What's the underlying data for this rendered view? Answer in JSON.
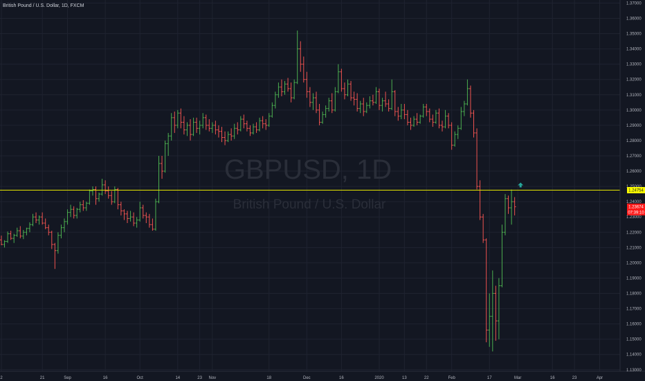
{
  "header": {
    "symbol_title": "British Pound / U.S. Dollar, 1D, FXCM"
  },
  "watermark": {
    "ticker": "GBPUSD, 1D",
    "description": "British Pound / U.S. Dollar"
  },
  "colors": {
    "background": "#131722",
    "grid": "#1f2330",
    "up": "#4caf50",
    "down": "#ef5350",
    "level_line": "#e6e600",
    "level_tag_bg": "#ffff00",
    "price_tag_bg": "#ff1a1a",
    "marker": "#26a69a"
  },
  "icons": {
    "level_marker": "up-arrow-marker-icon"
  },
  "labels": {
    "level_price": "1.24754",
    "last_price": "1.23674",
    "countdown": "07:39:10"
  },
  "chart_data": {
    "type": "ohlc",
    "title": "British Pound / U.S. Dollar, 1D, FXCM",
    "xlabel": "",
    "ylabel": "",
    "ylim": [
      1.129,
      1.372
    ],
    "y_ticks": [
      "1.37000",
      "1.36000",
      "1.35000",
      "1.34000",
      "1.33000",
      "1.32000",
      "1.31000",
      "1.30000",
      "1.29000",
      "1.28000",
      "1.27000",
      "1.26000",
      "1.25000",
      "1.24000",
      "1.23000",
      "1.22000",
      "1.21000",
      "1.20000",
      "1.19000",
      "1.18000",
      "1.17000",
      "1.16000",
      "1.15000",
      "1.14000",
      "1.13000"
    ],
    "x_ticks": [
      {
        "label": "2",
        "bar": 0
      },
      {
        "label": "21",
        "bar": 13
      },
      {
        "label": "Sep",
        "bar": 21
      },
      {
        "label": "16",
        "bar": 33
      },
      {
        "label": "Oct",
        "bar": 44
      },
      {
        "label": "14",
        "bar": 56
      },
      {
        "label": "23",
        "bar": 63
      },
      {
        "label": "Nov",
        "bar": 67
      },
      {
        "label": "18",
        "bar": 85
      },
      {
        "label": "Dec",
        "bar": 97
      },
      {
        "label": "16",
        "bar": 108
      },
      {
        "label": "2020",
        "bar": 120
      },
      {
        "label": "13",
        "bar": 128
      },
      {
        "label": "22",
        "bar": 135
      },
      {
        "label": "Feb",
        "bar": 143
      },
      {
        "label": "17",
        "bar": 155
      },
      {
        "label": "Mar",
        "bar": 164
      },
      {
        "label": "16",
        "bar": 175
      },
      {
        "label": "23",
        "bar": 182
      },
      {
        "label": "Apr",
        "bar": 190
      }
    ],
    "grid": true,
    "horizontal_line": 1.24754,
    "last_price": 1.23674,
    "ohlc": [
      [
        1.215,
        1.2178,
        1.2115,
        1.212
      ],
      [
        1.212,
        1.2148,
        1.21,
        1.214
      ],
      [
        1.214,
        1.2205,
        1.213,
        1.219
      ],
      [
        1.219,
        1.221,
        1.215,
        1.216
      ],
      [
        1.216,
        1.219,
        1.213,
        1.218
      ],
      [
        1.218,
        1.223,
        1.217,
        1.221
      ],
      [
        1.221,
        1.224,
        1.216,
        1.2175
      ],
      [
        1.2175,
        1.2215,
        1.2155,
        1.22
      ],
      [
        1.22,
        1.223,
        1.218,
        1.2225
      ],
      [
        1.2225,
        1.2265,
        1.22,
        1.225
      ],
      [
        1.225,
        1.232,
        1.224,
        1.23
      ],
      [
        1.23,
        1.233,
        1.226,
        1.228
      ],
      [
        1.228,
        1.231,
        1.225,
        1.23
      ],
      [
        1.23,
        1.233,
        1.225,
        1.226
      ],
      [
        1.226,
        1.229,
        1.222,
        1.223
      ],
      [
        1.223,
        1.225,
        1.218,
        1.22
      ],
      [
        1.22,
        1.221,
        1.209,
        1.212
      ],
      [
        1.212,
        1.213,
        1.196,
        1.208
      ],
      [
        1.208,
        1.22,
        1.206,
        1.218
      ],
      [
        1.218,
        1.225,
        1.216,
        1.223
      ],
      [
        1.223,
        1.229,
        1.22,
        1.227
      ],
      [
        1.227,
        1.235,
        1.225,
        1.233
      ],
      [
        1.233,
        1.238,
        1.23,
        1.235
      ],
      [
        1.235,
        1.237,
        1.229,
        1.231
      ],
      [
        1.231,
        1.236,
        1.229,
        1.235
      ],
      [
        1.235,
        1.24,
        1.233,
        1.238
      ],
      [
        1.238,
        1.241,
        1.234,
        1.236
      ],
      [
        1.236,
        1.24,
        1.234,
        1.239
      ],
      [
        1.239,
        1.248,
        1.238,
        1.247
      ],
      [
        1.247,
        1.25,
        1.244,
        1.248
      ],
      [
        1.248,
        1.25,
        1.238,
        1.242
      ],
      [
        1.242,
        1.246,
        1.24,
        1.245
      ],
      [
        1.245,
        1.255,
        1.244,
        1.251
      ],
      [
        1.251,
        1.254,
        1.245,
        1.247
      ],
      [
        1.247,
        1.25,
        1.242,
        1.244
      ],
      [
        1.244,
        1.247,
        1.238,
        1.24
      ],
      [
        1.24,
        1.25,
        1.239,
        1.248
      ],
      [
        1.248,
        1.249,
        1.235,
        1.238
      ],
      [
        1.238,
        1.24,
        1.231,
        1.234
      ],
      [
        1.234,
        1.235,
        1.228,
        1.232
      ],
      [
        1.232,
        1.234,
        1.226,
        1.229
      ],
      [
        1.229,
        1.234,
        1.227,
        1.23
      ],
      [
        1.23,
        1.233,
        1.224,
        1.226
      ],
      [
        1.226,
        1.23,
        1.223,
        1.228
      ],
      [
        1.228,
        1.24,
        1.227,
        1.236
      ],
      [
        1.236,
        1.238,
        1.229,
        1.231
      ],
      [
        1.231,
        1.233,
        1.226,
        1.23
      ],
      [
        1.23,
        1.232,
        1.223,
        1.225
      ],
      [
        1.225,
        1.229,
        1.221,
        1.222
      ],
      [
        1.222,
        1.242,
        1.221,
        1.24
      ],
      [
        1.24,
        1.27,
        1.239,
        1.265
      ],
      [
        1.265,
        1.27,
        1.255,
        1.26
      ],
      [
        1.26,
        1.28,
        1.259,
        1.278
      ],
      [
        1.278,
        1.285,
        1.27,
        1.283
      ],
      [
        1.283,
        1.298,
        1.28,
        1.295
      ],
      [
        1.295,
        1.299,
        1.285,
        1.29
      ],
      [
        1.29,
        1.3,
        1.288,
        1.298
      ],
      [
        1.298,
        1.301,
        1.288,
        1.292
      ],
      [
        1.292,
        1.296,
        1.284,
        1.287
      ],
      [
        1.287,
        1.292,
        1.283,
        1.29
      ],
      [
        1.29,
        1.294,
        1.28,
        1.284
      ],
      [
        1.284,
        1.295,
        1.283,
        1.292
      ],
      [
        1.292,
        1.295,
        1.285,
        1.288
      ],
      [
        1.288,
        1.293,
        1.284,
        1.29
      ],
      [
        1.29,
        1.298,
        1.288,
        1.295
      ],
      [
        1.295,
        1.297,
        1.287,
        1.29
      ],
      [
        1.29,
        1.294,
        1.286,
        1.288
      ],
      [
        1.288,
        1.292,
        1.285,
        1.29
      ],
      [
        1.29,
        1.293,
        1.284,
        1.287
      ],
      [
        1.287,
        1.29,
        1.282,
        1.286
      ],
      [
        1.286,
        1.289,
        1.279,
        1.282
      ],
      [
        1.282,
        1.286,
        1.277,
        1.28
      ],
      [
        1.28,
        1.286,
        1.279,
        1.284
      ],
      [
        1.284,
        1.288,
        1.28,
        1.283
      ],
      [
        1.283,
        1.291,
        1.281,
        1.288
      ],
      [
        1.288,
        1.292,
        1.284,
        1.287
      ],
      [
        1.287,
        1.296,
        1.286,
        1.294
      ],
      [
        1.294,
        1.297,
        1.288,
        1.291
      ],
      [
        1.291,
        1.293,
        1.286,
        1.288
      ],
      [
        1.288,
        1.29,
        1.283,
        1.285
      ],
      [
        1.285,
        1.291,
        1.284,
        1.289
      ],
      [
        1.289,
        1.292,
        1.285,
        1.287
      ],
      [
        1.287,
        1.295,
        1.286,
        1.293
      ],
      [
        1.293,
        1.296,
        1.288,
        1.291
      ],
      [
        1.291,
        1.294,
        1.287,
        1.29
      ],
      [
        1.29,
        1.298,
        1.289,
        1.296
      ],
      [
        1.296,
        1.305,
        1.295,
        1.303
      ],
      [
        1.303,
        1.312,
        1.301,
        1.31
      ],
      [
        1.31,
        1.318,
        1.308,
        1.315
      ],
      [
        1.315,
        1.32,
        1.309,
        1.312
      ],
      [
        1.312,
        1.319,
        1.31,
        1.317
      ],
      [
        1.317,
        1.321,
        1.312,
        1.314
      ],
      [
        1.314,
        1.318,
        1.305,
        1.308
      ],
      [
        1.308,
        1.32,
        1.307,
        1.318
      ],
      [
        1.318,
        1.352,
        1.317,
        1.34
      ],
      [
        1.34,
        1.345,
        1.325,
        1.33
      ],
      [
        1.33,
        1.335,
        1.318,
        1.32
      ],
      [
        1.32,
        1.325,
        1.308,
        1.312
      ],
      [
        1.312,
        1.315,
        1.302,
        1.305
      ],
      [
        1.305,
        1.311,
        1.3,
        1.308
      ],
      [
        1.308,
        1.312,
        1.298,
        1.3
      ],
      [
        1.3,
        1.304,
        1.29,
        1.292
      ],
      [
        1.292,
        1.299,
        1.291,
        1.297
      ],
      [
        1.297,
        1.303,
        1.295,
        1.301
      ],
      [
        1.301,
        1.308,
        1.299,
        1.306
      ],
      [
        1.306,
        1.311,
        1.298,
        1.3
      ],
      [
        1.3,
        1.315,
        1.299,
        1.312
      ],
      [
        1.312,
        1.33,
        1.311,
        1.325
      ],
      [
        1.325,
        1.327,
        1.312,
        1.314
      ],
      [
        1.314,
        1.318,
        1.307,
        1.31
      ],
      [
        1.31,
        1.32,
        1.309,
        1.317
      ],
      [
        1.317,
        1.319,
        1.306,
        1.308
      ],
      [
        1.308,
        1.312,
        1.303,
        1.307
      ],
      [
        1.307,
        1.311,
        1.299,
        1.301
      ],
      [
        1.301,
        1.306,
        1.298,
        1.304
      ],
      [
        1.304,
        1.308,
        1.296,
        1.299
      ],
      [
        1.299,
        1.305,
        1.298,
        1.303
      ],
      [
        1.303,
        1.309,
        1.301,
        1.306
      ],
      [
        1.306,
        1.31,
        1.303,
        1.305
      ],
      [
        1.305,
        1.315,
        1.304,
        1.312
      ],
      [
        1.312,
        1.314,
        1.3,
        1.303
      ],
      [
        1.303,
        1.308,
        1.299,
        1.306
      ],
      [
        1.306,
        1.312,
        1.302,
        1.304
      ],
      [
        1.304,
        1.307,
        1.299,
        1.301
      ],
      [
        1.301,
        1.32,
        1.3,
        1.312
      ],
      [
        1.312,
        1.313,
        1.296,
        1.299
      ],
      [
        1.299,
        1.302,
        1.293,
        1.296
      ],
      [
        1.296,
        1.304,
        1.294,
        1.3
      ],
      [
        1.3,
        1.304,
        1.294,
        1.297
      ],
      [
        1.297,
        1.3,
        1.29,
        1.292
      ],
      [
        1.292,
        1.295,
        1.287,
        1.29
      ],
      [
        1.29,
        1.296,
        1.289,
        1.294
      ],
      [
        1.294,
        1.298,
        1.29,
        1.292
      ],
      [
        1.292,
        1.297,
        1.291,
        1.296
      ],
      [
        1.296,
        1.304,
        1.295,
        1.302
      ],
      [
        1.302,
        1.304,
        1.296,
        1.299
      ],
      [
        1.299,
        1.301,
        1.292,
        1.294
      ],
      [
        1.294,
        1.297,
        1.289,
        1.292
      ],
      [
        1.292,
        1.3,
        1.291,
        1.298
      ],
      [
        1.298,
        1.301,
        1.288,
        1.29
      ],
      [
        1.29,
        1.293,
        1.286,
        1.289
      ],
      [
        1.289,
        1.3,
        1.288,
        1.296
      ],
      [
        1.296,
        1.298,
        1.288,
        1.29
      ],
      [
        1.29,
        1.292,
        1.274,
        1.277
      ],
      [
        1.277,
        1.286,
        1.276,
        1.284
      ],
      [
        1.284,
        1.29,
        1.281,
        1.288
      ],
      [
        1.288,
        1.302,
        1.287,
        1.299
      ],
      [
        1.299,
        1.306,
        1.296,
        1.304
      ],
      [
        1.304,
        1.32,
        1.303,
        1.314
      ],
      [
        1.314,
        1.316,
        1.295,
        1.298
      ],
      [
        1.298,
        1.3,
        1.282,
        1.285
      ],
      [
        1.285,
        1.288,
        1.248,
        1.25
      ],
      [
        1.25,
        1.254,
        1.228,
        1.23
      ],
      [
        1.23,
        1.232,
        1.213,
        1.215
      ],
      [
        1.215,
        1.216,
        1.148,
        1.156
      ],
      [
        1.156,
        1.18,
        1.145,
        1.165
      ],
      [
        1.165,
        1.195,
        1.142,
        1.18
      ],
      [
        1.18,
        1.185,
        1.149,
        1.162
      ],
      [
        1.162,
        1.19,
        1.15,
        1.185
      ],
      [
        1.185,
        1.225,
        1.184,
        1.22
      ],
      [
        1.22,
        1.245,
        1.218,
        1.242
      ],
      [
        1.242,
        1.244,
        1.232,
        1.236
      ],
      [
        1.236,
        1.248,
        1.225,
        1.24
      ],
      [
        1.24,
        1.243,
        1.231,
        1.2367
      ]
    ]
  }
}
